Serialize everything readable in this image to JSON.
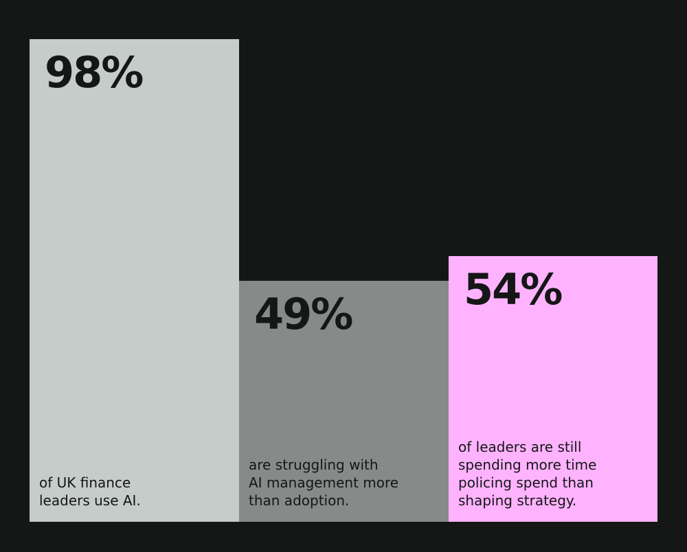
{
  "chart_data": {
    "type": "bar",
    "categories": [
      "of UK finance\nleaders use AI.",
      "are struggling with\nAI management more\nthan adoption.",
      "of leaders are still\nspending more time\npolicing spend than\nshaping strategy."
    ],
    "values": [
      98,
      49,
      54
    ],
    "value_labels": [
      "98%",
      "49%",
      "54%"
    ],
    "colors": [
      "#c5ccca",
      "#868a89",
      "#ffb3ff"
    ],
    "ylim": [
      0,
      100
    ],
    "grid": false
  }
}
